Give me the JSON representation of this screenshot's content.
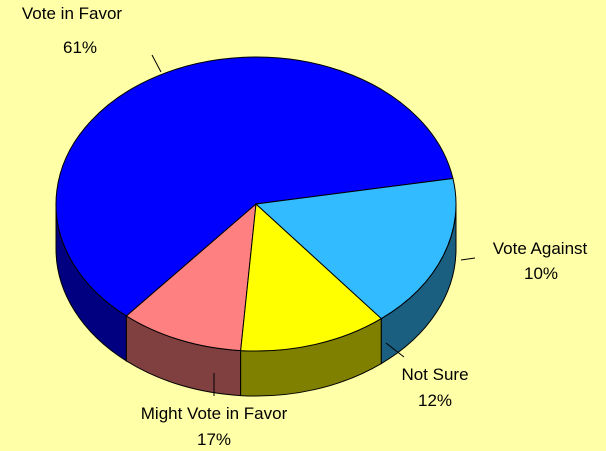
{
  "chart_data": {
    "type": "pie",
    "style": "3d",
    "background": "#FFFFA8",
    "slices": [
      {
        "label": "Vote in Favor",
        "value": 61,
        "value_label": "61%",
        "color": "#0000FF"
      },
      {
        "label": "Vote Against",
        "value": 10,
        "value_label": "10%",
        "color": "#FF8080"
      },
      {
        "label": "Not Sure",
        "value": 12,
        "value_label": "12%",
        "color": "#FFFF00"
      },
      {
        "label": "Might Vote in Favor",
        "value": 17,
        "value_label": "17%",
        "color": "#33BBFF"
      }
    ]
  }
}
